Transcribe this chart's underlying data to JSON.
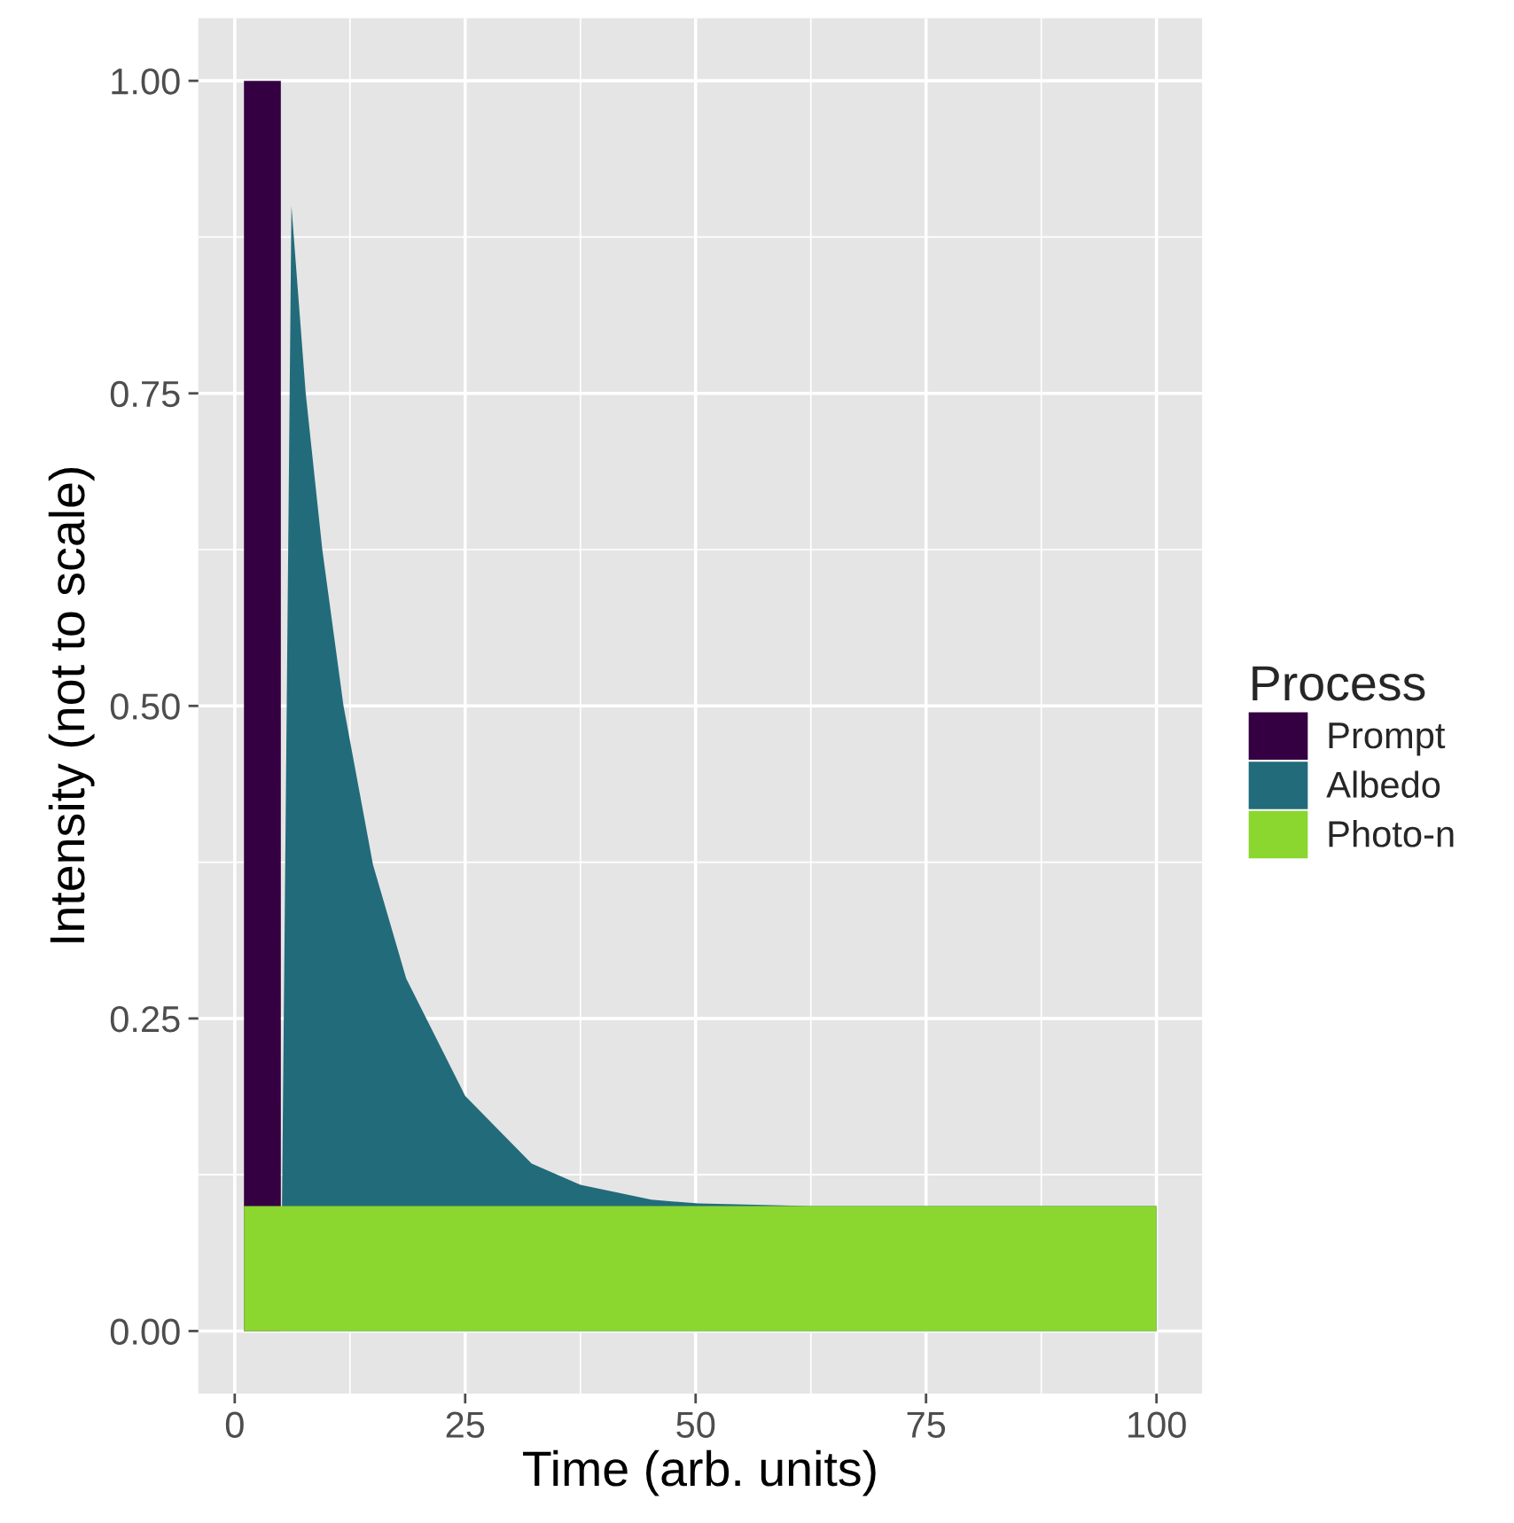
{
  "chart_data": {
    "type": "area",
    "xlabel": "Time (arb. units)",
    "ylabel": "Intensity (not to scale)",
    "legend_title": "Process",
    "series": [
      {
        "name": "Prompt",
        "color": "#340042",
        "x": [
          1,
          5,
          5
        ],
        "values": [
          1,
          1,
          0
        ]
      },
      {
        "name": "Albedo",
        "color": "#226b7b",
        "x": [
          5,
          6.15,
          7.7,
          9.5,
          11.8,
          15,
          18.6,
          25,
          32.2,
          37.5,
          45.2,
          50.3,
          62.5,
          100
        ],
        "values": [
          0,
          0.9,
          0.75,
          0.625,
          0.5,
          0.373,
          0.282,
          0.188,
          0.134,
          0.117,
          0.105,
          0.102,
          0.1,
          0.1
        ]
      },
      {
        "name": "Photo-n",
        "color": "#8bd62f",
        "x": [
          1,
          100
        ],
        "values": [
          0.1,
          0.1
        ]
      }
    ],
    "xlim": [
      -3.95,
      104.95
    ],
    "ylim": [
      -0.05,
      1.05
    ],
    "xticks": [
      0,
      25,
      50,
      75,
      100
    ],
    "yticks": [
      {
        "value": 0,
        "label": "0.00"
      },
      {
        "value": 0.25,
        "label": "0.25"
      },
      {
        "value": 0.5,
        "label": "0.50"
      },
      {
        "value": 0.75,
        "label": "0.75"
      },
      {
        "value": 1,
        "label": "1.00"
      }
    ],
    "grid": true,
    "legend": "right"
  }
}
